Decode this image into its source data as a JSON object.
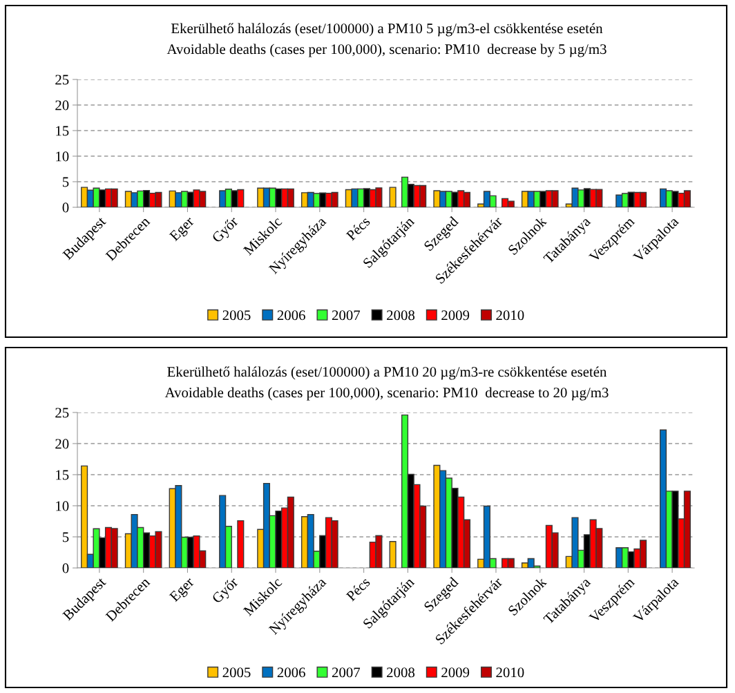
{
  "chart_data": [
    {
      "type": "bar",
      "title": "Ekerülhető halálozás (eset/100000) a PM10 5 µg/m3-el csökkentése esetén",
      "subtitle": "Avoidable deaths (cases per 100,000), scenario: PM10  decrease by 5 µg/m3",
      "categories": [
        "Budapest",
        "Debrecen",
        "Eger",
        "Győr",
        "Miskolc",
        "Nyíregyháza",
        "Pécs",
        "Salgótarján",
        "Szeged",
        "Székesfehérvár",
        "Szolnok",
        "Tatabánya",
        "Veszprém",
        "Várpalota"
      ],
      "series": [
        {
          "name": "2005",
          "color": "#ffc000",
          "values": [
            3.9,
            3.1,
            3.2,
            null,
            3.75,
            2.85,
            3.45,
            3.9,
            3.25,
            0.65,
            3.1,
            0.65,
            null,
            null
          ]
        },
        {
          "name": "2006",
          "color": "#0070c0",
          "values": [
            3.35,
            2.85,
            2.85,
            3.25,
            3.75,
            2.9,
            3.6,
            null,
            3.1,
            3.1,
            3.1,
            3.75,
            2.4,
            3.6
          ]
        },
        {
          "name": "2007",
          "color": "#33ff33",
          "values": [
            3.75,
            3.2,
            3.1,
            3.55,
            3.75,
            2.7,
            3.6,
            5.9,
            3.1,
            2.25,
            3.1,
            3.4,
            2.7,
            3.25
          ]
        },
        {
          "name": "2008",
          "color": "#000000",
          "values": [
            3.4,
            3.3,
            2.95,
            3.25,
            3.6,
            2.8,
            3.65,
            4.5,
            2.95,
            null,
            3.1,
            3.65,
            2.95,
            3.1
          ]
        },
        {
          "name": "2009",
          "color": "#ff0000",
          "values": [
            3.6,
            2.75,
            3.4,
            3.45,
            3.6,
            2.75,
            3.45,
            4.25,
            3.25,
            1.7,
            3.25,
            3.5,
            2.9,
            2.75
          ]
        },
        {
          "name": "2010",
          "color": "#c00000",
          "values": [
            3.6,
            2.9,
            3.1,
            null,
            3.6,
            2.9,
            3.8,
            4.25,
            2.9,
            1.2,
            3.25,
            3.5,
            2.9,
            3.25
          ]
        }
      ],
      "ylim": [
        0,
        25
      ],
      "yticks": [
        0,
        5,
        10,
        15,
        20,
        25
      ],
      "grid": "y",
      "legend": "bottom"
    },
    {
      "type": "bar",
      "title": "Ekerülhető halálozás (eset/100000) a PM10 20 µg/m3-re csökkentése esetén",
      "subtitle": "Avoidable deaths (cases per 100,000), scenario: PM10  decrease to 20 µg/m3",
      "categories": [
        "Budapest",
        "Debrecen",
        "Eger",
        "Győr",
        "Miskolc",
        "Nyíregyháza",
        "Pécs",
        "Salgótarján",
        "Szeged",
        "Székesfehérvár",
        "Szolnok",
        "Tatabánya",
        "Veszprém",
        "Várpalota"
      ],
      "series": [
        {
          "name": "2005",
          "color": "#ffc000",
          "values": [
            16.4,
            5.5,
            12.75,
            null,
            6.2,
            8.25,
            null,
            4.25,
            16.5,
            1.4,
            0.8,
            1.85,
            null,
            null
          ]
        },
        {
          "name": "2006",
          "color": "#0070c0",
          "values": [
            2.2,
            8.6,
            13.25,
            11.65,
            13.6,
            8.6,
            null,
            null,
            15.65,
            9.95,
            1.5,
            8.1,
            3.25,
            22.2
          ]
        },
        {
          "name": "2007",
          "color": "#33ff33",
          "values": [
            6.3,
            6.5,
            4.95,
            6.7,
            8.4,
            2.7,
            null,
            24.6,
            14.45,
            1.5,
            0.3,
            2.85,
            3.25,
            12.35
          ]
        },
        {
          "name": "2008",
          "color": "#000000",
          "values": [
            4.85,
            5.65,
            4.95,
            null,
            9.15,
            5.2,
            null,
            15.05,
            12.8,
            null,
            null,
            5.35,
            2.6,
            12.35
          ]
        },
        {
          "name": "2009",
          "color": "#ff0000",
          "values": [
            6.5,
            5.15,
            5.15,
            7.6,
            9.65,
            8.1,
            4.15,
            13.4,
            11.4,
            1.5,
            6.85,
            7.75,
            3.05,
            7.9
          ]
        },
        {
          "name": "2010",
          "color": "#c00000",
          "values": [
            6.35,
            5.85,
            2.75,
            null,
            11.4,
            7.6,
            5.2,
            9.95,
            7.75,
            1.5,
            5.65,
            6.35,
            4.45,
            12.35
          ]
        }
      ],
      "ylim": [
        0,
        25
      ],
      "yticks": [
        0,
        5,
        10,
        15,
        20,
        25
      ],
      "grid": "y",
      "legend": "bottom"
    }
  ]
}
